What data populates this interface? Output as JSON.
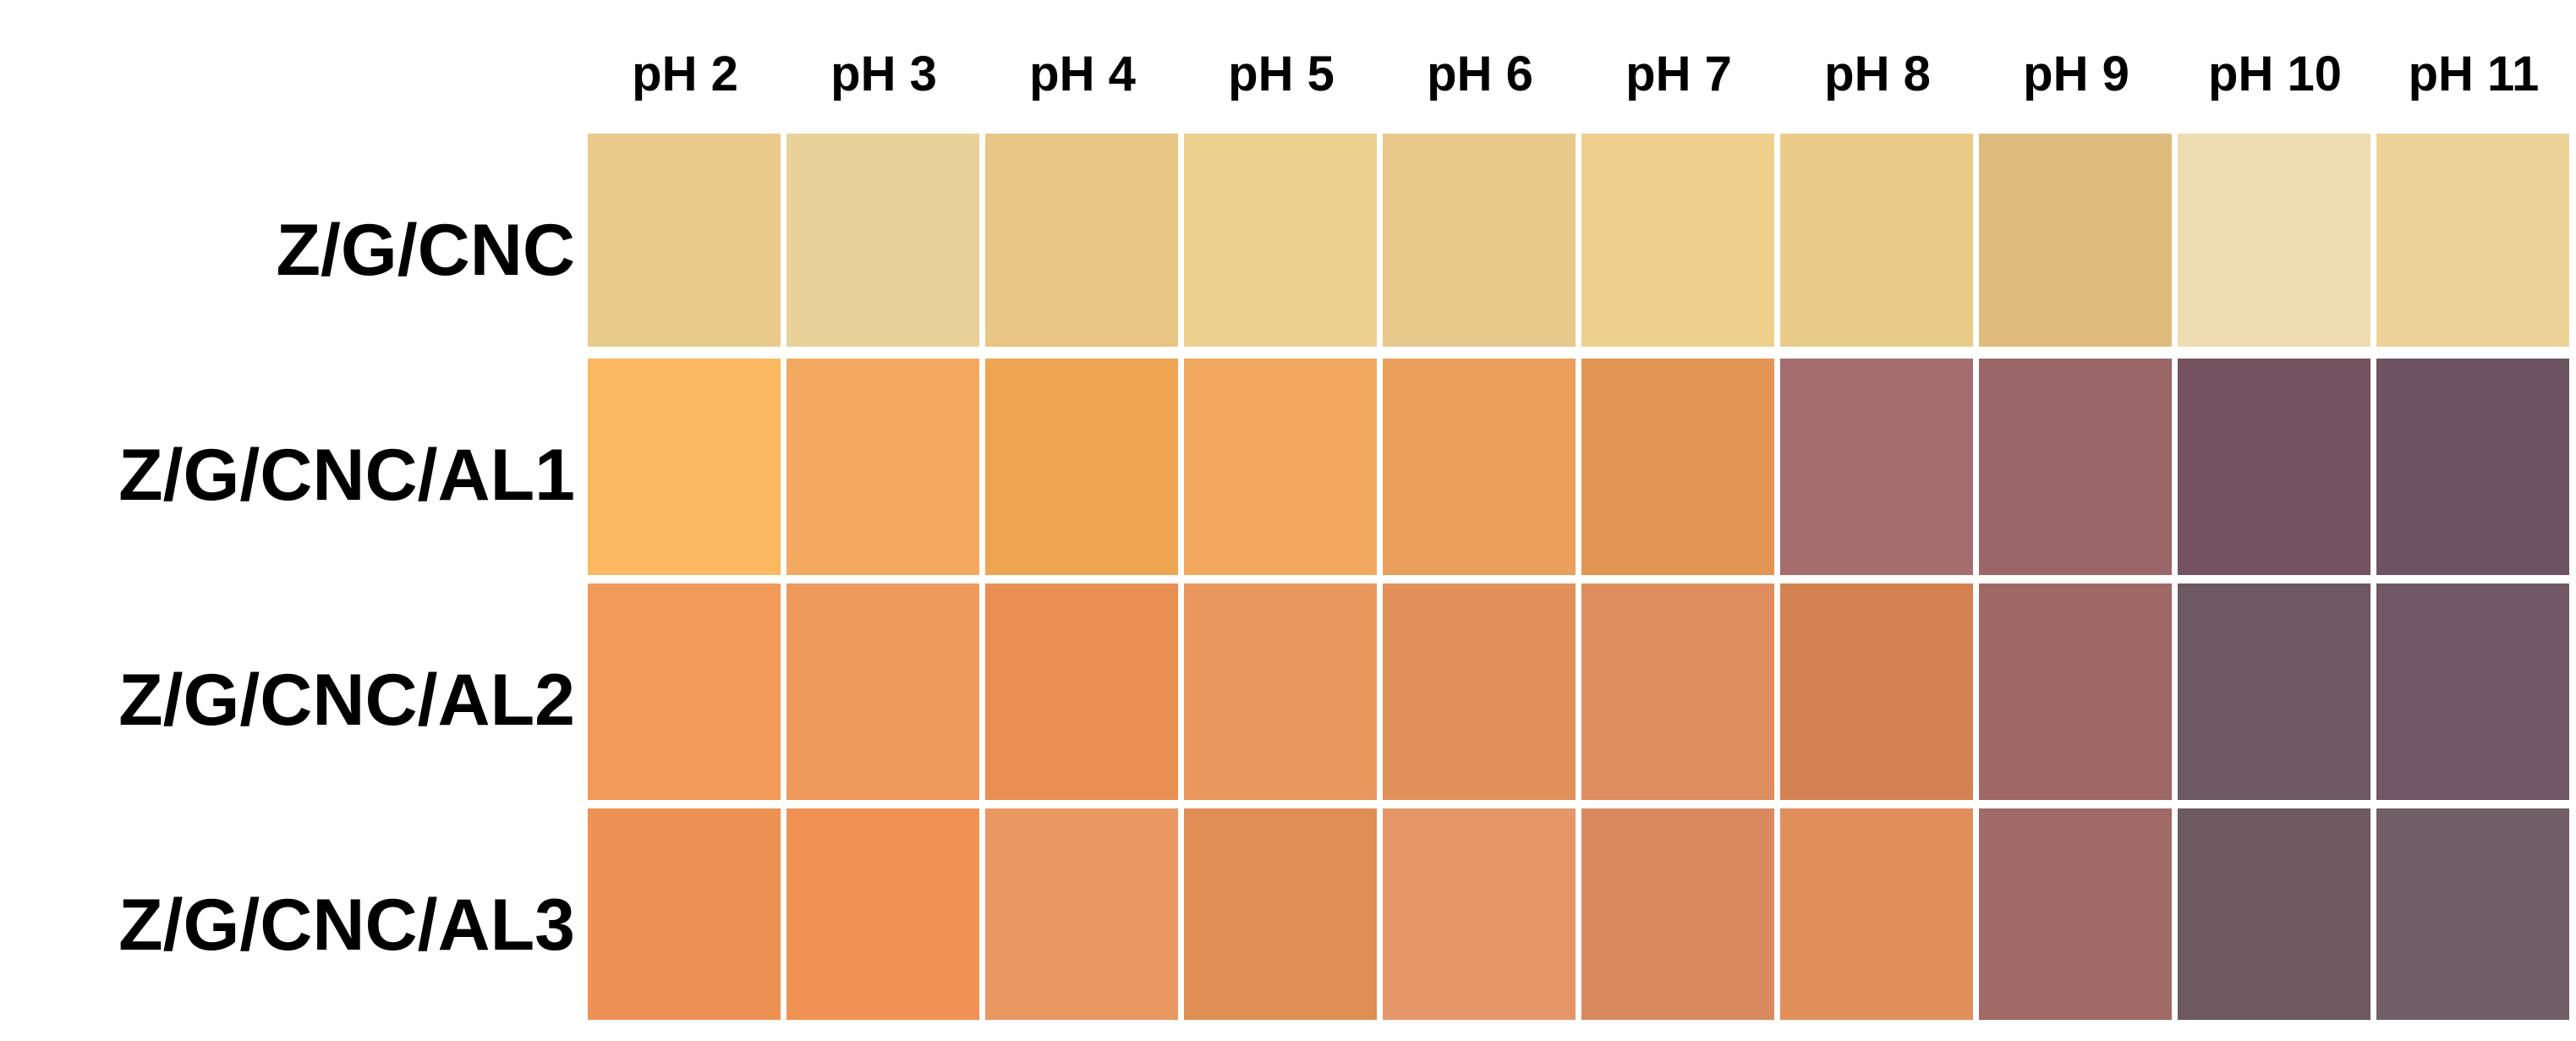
{
  "columns": [
    "pH 2",
    "pH 3",
    "pH 4",
    "pH 5",
    "pH 6",
    "pH 7",
    "pH 8",
    "pH 9",
    "pH 10",
    "pH 11"
  ],
  "rows": [
    {
      "label": "Z/G/CNC",
      "colors": [
        "#EBCB8B",
        "#E8D29A",
        "#E8C683",
        "#EDD08E",
        "#E8C98B",
        "#EECF8C",
        "#EACB88",
        "#DEBD7E",
        "#EFDDB2",
        "#ECD297"
      ]
    },
    {
      "label": "Z/G/CNC/AL1",
      "colors": [
        "#FCB860",
        "#F3A960",
        "#EEA552",
        "#F0A95E",
        "#EAA05A",
        "#E39554",
        "#A66D6E",
        "#9A6667",
        "#74525F",
        "#6E5460"
      ]
    },
    {
      "label": "Z/G/CNC/AL2",
      "colors": [
        "#F29A5A",
        "#EE9A5C",
        "#E98F52",
        "#E9975C",
        "#E1905A",
        "#DE8E5E",
        "#D58151",
        "#9E6865",
        "#6E5862",
        "#715763"
      ]
    },
    {
      "label": "Z/G/CNC/AL3",
      "colors": [
        "#EE9155",
        "#EF9254",
        "#E99862",
        "#DF8D52",
        "#E5976A",
        "#D9895E",
        "#E18E5B",
        "#A06A67",
        "#6E5961",
        "#715E67"
      ]
    }
  ]
}
